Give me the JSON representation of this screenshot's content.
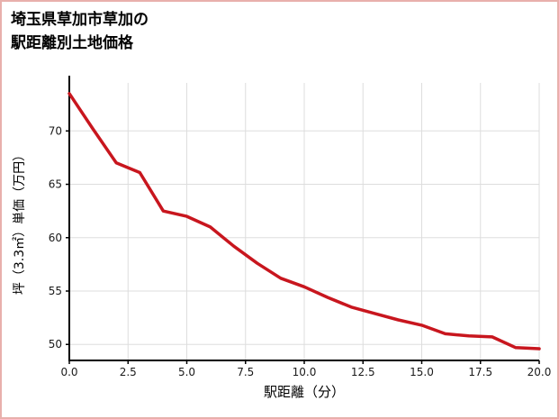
{
  "title": {
    "line1": "埼玉県草加市草加の",
    "line2": "駅距離別土地価格"
  },
  "chart_data": {
    "type": "line",
    "title": "埼玉県草加市草加の駅距離別土地価格",
    "xlabel": "駅距離（分）",
    "ylabel": "坪（3.3㎡）単価（万円）",
    "x": [
      0,
      1,
      2,
      3,
      4,
      5,
      6,
      7,
      8,
      9,
      10,
      11,
      12,
      13,
      14,
      15,
      16,
      17,
      18,
      19,
      20
    ],
    "values": [
      73.5,
      70.2,
      67.0,
      66.1,
      62.5,
      62.0,
      61.0,
      59.2,
      57.6,
      56.2,
      55.4,
      54.4,
      53.5,
      52.9,
      52.3,
      51.8,
      51.0,
      50.8,
      50.7,
      49.7,
      49.6
    ],
    "x_ticks": [
      {
        "value": 0,
        "label": "0.0"
      },
      {
        "value": 2.5,
        "label": "2.5"
      },
      {
        "value": 5,
        "label": "5.0"
      },
      {
        "value": 7.5,
        "label": "7.5"
      },
      {
        "value": 10,
        "label": "10.0"
      },
      {
        "value": 12.5,
        "label": "12.5"
      },
      {
        "value": 15,
        "label": "15.0"
      },
      {
        "value": 17.5,
        "label": "17.5"
      },
      {
        "value": 20,
        "label": "20.0"
      }
    ],
    "y_ticks": [
      {
        "value": 50,
        "label": "50"
      },
      {
        "value": 55,
        "label": "55"
      },
      {
        "value": 60,
        "label": "60"
      },
      {
        "value": 65,
        "label": "65"
      },
      {
        "value": 70,
        "label": "70"
      }
    ],
    "xlim": [
      0,
      20
    ],
    "ylim": [
      48.5,
      74.5
    ],
    "grid": true,
    "legend_position": "none",
    "colors": {
      "line": "#c8161e",
      "grid": "#dddddd",
      "spine": "#000000",
      "tick_text": "#1a1a1a",
      "page_border": "#e8b0ac"
    }
  }
}
